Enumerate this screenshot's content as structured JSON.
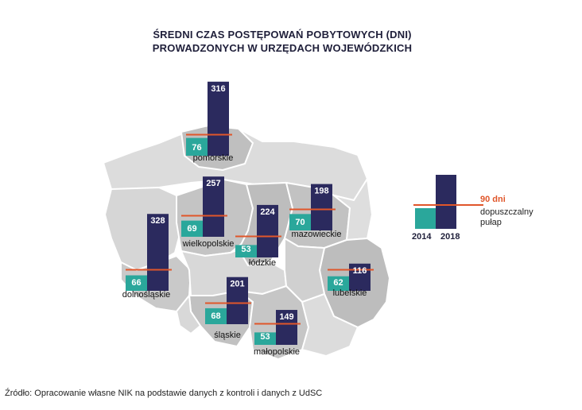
{
  "title_lines": [
    "ŚREDNI CZAS  POSTĘPOWAŃ POBYTOWYCH (DNI)",
    "PROWADZONYCH W URZĘDACH WOJEWÓDZKICH"
  ],
  "source": "Źródło: Opracowanie własne NIK na podstawie danych z kontroli i danych z UdSC",
  "legend": {
    "year_2014": "2014",
    "year_2018": "2018",
    "limit_label": "90 dni",
    "limit_note_line1": "dopuszczalny",
    "limit_note_line2": "pułap"
  },
  "colors": {
    "y2014": "#2aa79b",
    "y2018": "#2b2a5e",
    "limit": "#e0562a",
    "map_light": "#dcdcdc",
    "map_dark": "#bfbfbf"
  },
  "chart_data": {
    "type": "bar",
    "title": "ŚREDNI CZAS  POSTĘPOWAŃ POBYTOWYCH (DNI) PROWADZONYCH W URZĘDACH WOJEWÓDZKICH",
    "categories": [
      "pomorskie",
      "wielkopolskie",
      "łódzkie",
      "mazowieckie",
      "dolnośląskie",
      "lubelskie",
      "śląskie",
      "małopolskie"
    ],
    "series": [
      {
        "name": "2014",
        "values": [
          76,
          69,
          53,
          70,
          66,
          62,
          68,
          53
        ]
      },
      {
        "name": "2018",
        "values": [
          316,
          257,
          224,
          198,
          328,
          116,
          201,
          149
        ]
      }
    ],
    "reference_line": {
      "label": "90 dni",
      "value": 90
    }
  }
}
